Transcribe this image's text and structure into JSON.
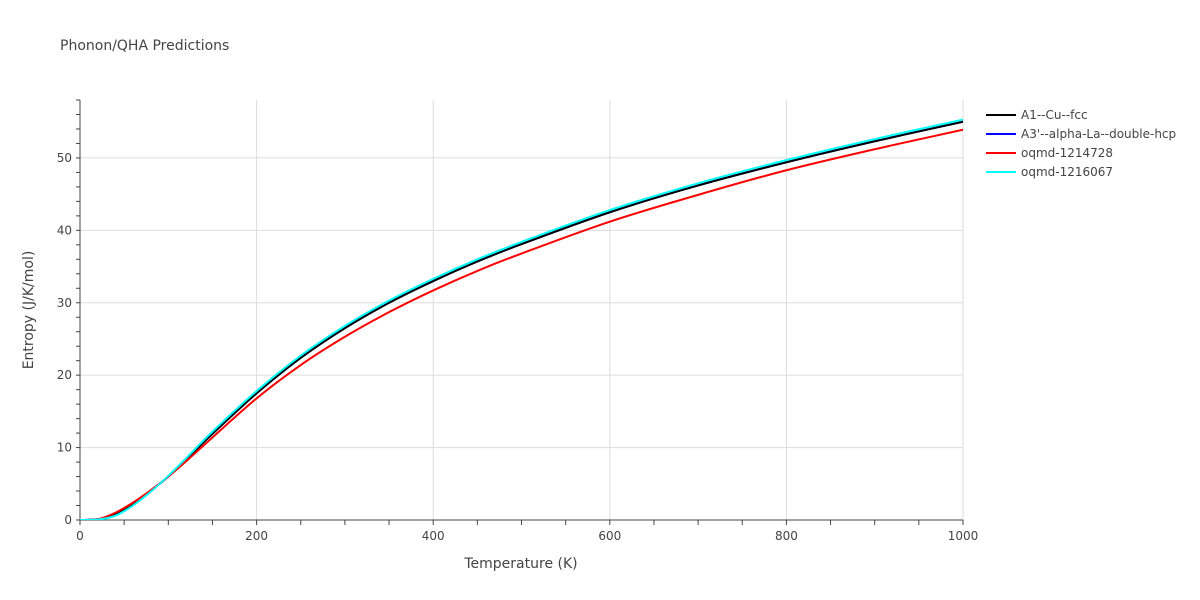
{
  "chart_data": {
    "type": "line",
    "title": "Phonon/QHA Predictions",
    "xlabel": "Temperature (K)",
    "ylabel": "Entropy (J/K/mol)",
    "xlim": [
      0,
      1000
    ],
    "ylim": [
      0,
      58
    ],
    "x_ticks": [
      "0",
      "200",
      "400",
      "600",
      "800",
      "1000"
    ],
    "y_ticks": [
      "0",
      "10",
      "20",
      "30",
      "40",
      "50"
    ],
    "grid": true,
    "legend_position": "top-right",
    "series": [
      {
        "name": "A1--Cu--fcc",
        "color": "#000000",
        "x": [
          0,
          20,
          40,
          60,
          80,
          100,
          120,
          150,
          200,
          250,
          300,
          350,
          400,
          450,
          500,
          600,
          700,
          800,
          900,
          1000
        ],
        "y": [
          0,
          0.1,
          0.8,
          2.2,
          4.0,
          6.0,
          8.3,
          11.9,
          17.5,
          22.4,
          26.5,
          30.0,
          33.0,
          35.7,
          38.1,
          42.5,
          46.2,
          49.4,
          52.3,
          55.0
        ]
      },
      {
        "name": "A3'--alpha-La--double-hcp",
        "color": "#0000ff",
        "x": [
          0,
          20,
          40,
          60,
          80,
          100,
          120,
          150,
          200,
          250,
          300,
          350,
          400,
          450,
          500,
          600,
          700,
          800,
          900,
          1000
        ],
        "y": [
          0,
          0.1,
          0.8,
          2.2,
          4.0,
          6.0,
          8.3,
          11.9,
          17.5,
          22.4,
          26.5,
          30.0,
          33.0,
          35.7,
          38.1,
          42.5,
          46.2,
          49.4,
          52.3,
          55.0
        ]
      },
      {
        "name": "oqmd-1214728",
        "color": "#ff0000",
        "x": [
          0,
          20,
          40,
          60,
          80,
          100,
          120,
          150,
          200,
          250,
          300,
          350,
          400,
          450,
          500,
          600,
          700,
          800,
          900,
          1000
        ],
        "y": [
          0,
          0.1,
          1.0,
          2.4,
          4.1,
          6.0,
          8.1,
          11.4,
          16.8,
          21.4,
          25.3,
          28.7,
          31.7,
          34.4,
          36.8,
          41.2,
          44.9,
          48.3,
          51.2,
          53.9
        ]
      },
      {
        "name": "oqmd-1216067",
        "color": "#00ffff",
        "x": [
          0,
          20,
          40,
          60,
          80,
          100,
          120,
          150,
          200,
          250,
          300,
          350,
          400,
          450,
          500,
          600,
          700,
          800,
          900,
          1000
        ],
        "y": [
          0,
          0.05,
          0.6,
          2.0,
          3.9,
          6.1,
          8.5,
          12.2,
          17.8,
          22.7,
          26.8,
          30.3,
          33.3,
          36.0,
          38.4,
          42.8,
          46.5,
          49.7,
          52.6,
          55.3
        ]
      }
    ]
  }
}
